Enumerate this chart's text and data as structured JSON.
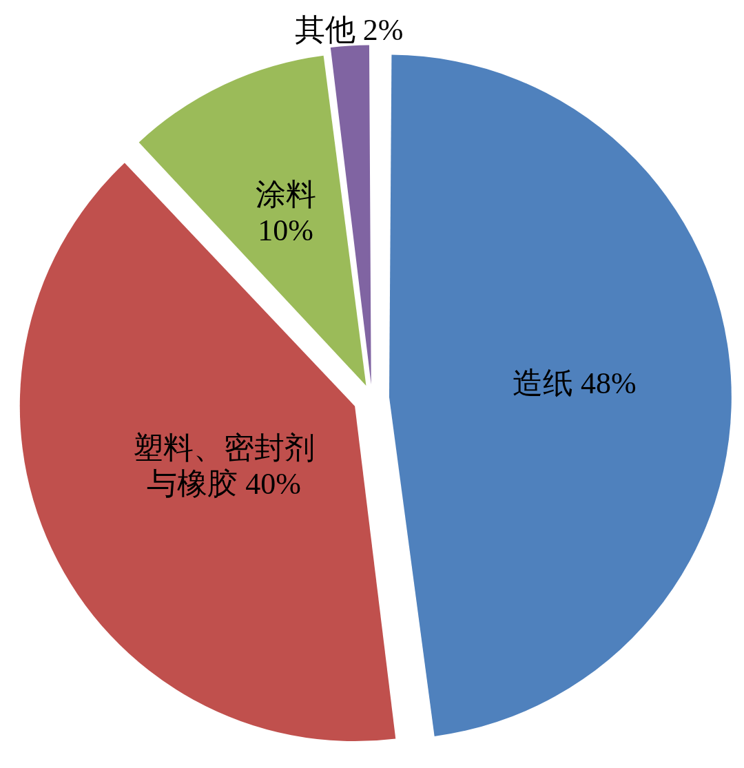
{
  "chart_data": {
    "type": "pie",
    "categories": [
      "造纸",
      "塑料、密封剂与橡胶",
      "涂料",
      "其他"
    ],
    "values": [
      48,
      40,
      10,
      2
    ],
    "value_labels": [
      "48%",
      "40%",
      "10%",
      "2%"
    ],
    "colors": [
      "#4f81bd",
      "#c0504d",
      "#9bbb59",
      "#8064a2"
    ]
  }
}
